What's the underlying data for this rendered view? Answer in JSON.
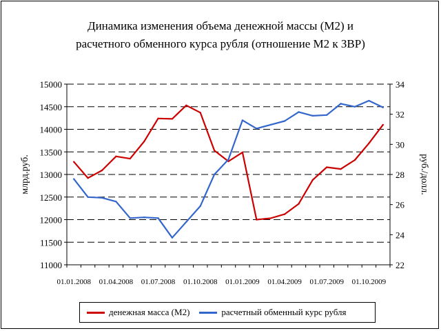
{
  "chart_data": {
    "type": "line",
    "title_line1": "Динамика изменения объема денежной массы (М2) и",
    "title_line2": "расчетного обменного курса рубля (отношение М2 к ЗВР)",
    "ylabel_left": "млрд.руб.",
    "ylabel_right": "руб./долл.",
    "ylim_left": [
      11000,
      15000
    ],
    "yticks_left": [
      11000,
      11500,
      12000,
      12500,
      13000,
      13500,
      14000,
      14500,
      15000
    ],
    "ylim_right": [
      22,
      34
    ],
    "yticks_right": [
      22,
      24,
      26,
      28,
      30,
      32,
      34
    ],
    "x_tick_labels": [
      "01.01.2008",
      "01.04.2008",
      "01.07.2008",
      "01.10.2008",
      "01.01.2009",
      "01.04.2009",
      "01.07.2009",
      "01.10.2009"
    ],
    "grid": "horizontal dashed",
    "legend_position": "bottom",
    "series": [
      {
        "name": "денежная масса (М2)",
        "axis": "left",
        "color": "#cc0000",
        "values": [
          13280,
          12920,
          13090,
          13400,
          13350,
          13730,
          14240,
          14230,
          14530,
          14370,
          13530,
          13290,
          13490,
          12000,
          12030,
          12120,
          12350,
          12880,
          13160,
          13120,
          13320,
          13690,
          14100
        ]
      },
      {
        "name": "расчетный обменный курс рубля",
        "axis": "right",
        "color": "#3366cc",
        "values": [
          27.7,
          26.5,
          26.45,
          26.2,
          25.1,
          25.15,
          25.1,
          23.8,
          24.85,
          25.9,
          28.0,
          29.0,
          31.6,
          31.05,
          31.3,
          31.55,
          32.15,
          31.9,
          31.95,
          32.7,
          32.5,
          32.9,
          32.45
        ]
      }
    ]
  }
}
